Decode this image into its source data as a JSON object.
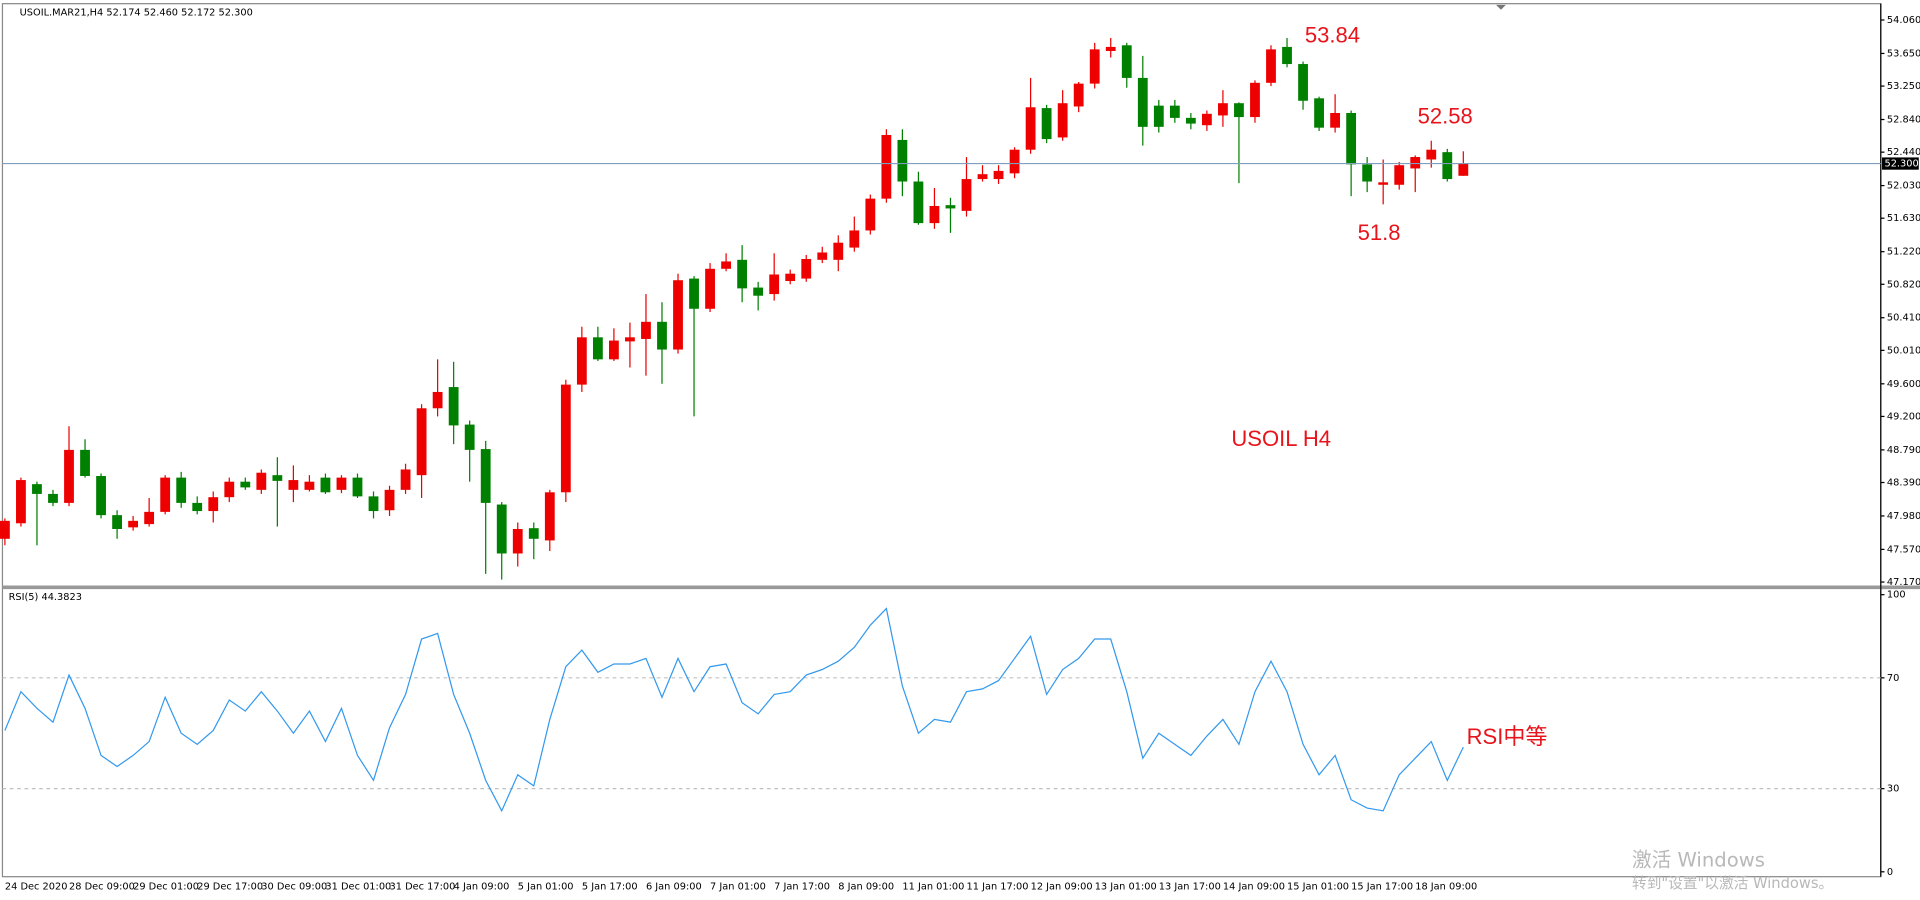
{
  "chart_data": [
    {
      "type": "candlestick",
      "title": "USOIL.MAR21,H4  52.174 52.460 52.172 52.300",
      "categories": [
        "24 Dec 2020",
        null,
        null,
        null,
        "28 Dec 09:00",
        null,
        null,
        null,
        "29 Dec 01:00",
        null,
        null,
        null,
        "29 Dec 17:00",
        null,
        null,
        null,
        "30 Dec 09:00",
        null,
        null,
        null,
        "31 Dec 01:00",
        null,
        null,
        null,
        "31 Dec 17:00",
        null,
        null,
        null,
        "4 Jan 09:00",
        null,
        null,
        null,
        "5 Jan 01:00",
        null,
        null,
        null,
        "5 Jan 17:00",
        null,
        null,
        null,
        "6 Jan 09:00",
        null,
        null,
        null,
        "7 Jan 01:00",
        null,
        null,
        null,
        "7 Jan 17:00",
        null,
        null,
        null,
        "8 Jan 09:00",
        null,
        null,
        null,
        "11 Jan 01:00",
        null,
        null,
        null,
        "11 Jan 17:00",
        null,
        null,
        null,
        "12 Jan 09:00",
        null,
        null,
        null,
        "13 Jan 01:00",
        null,
        null,
        null,
        "13 Jan 17:00",
        null,
        null,
        null,
        "14 Jan 09:00",
        null,
        null,
        null,
        "15 Jan 01:00",
        null,
        null,
        null,
        "15 Jan 17:00",
        null,
        null,
        null,
        "18 Jan 09:00",
        null,
        null,
        null
      ],
      "open": [
        47.7,
        47.89,
        48.37,
        48.25,
        48.14,
        48.79,
        48.47,
        47.99,
        47.84,
        47.88,
        48.03,
        48.45,
        48.14,
        48.04,
        48.21,
        48.4,
        48.3,
        48.48,
        48.3,
        48.3,
        48.45,
        48.3,
        48.45,
        48.22,
        48.05,
        48.3,
        48.48,
        49.3,
        49.56,
        49.1,
        48.8,
        48.12,
        47.52,
        47.83,
        47.68,
        48.27,
        49.59,
        50.17,
        49.9,
        50.12,
        50.15,
        50.36,
        50.02,
        50.89,
        50.52,
        51.01,
        51.12,
        50.78,
        50.7,
        50.86,
        50.89,
        51.12,
        51.12,
        51.27,
        51.48,
        51.87,
        52.59,
        52.08,
        51.57,
        51.79,
        51.72,
        52.11,
        52.11,
        52.18,
        52.47,
        52.98,
        52.62,
        53.0,
        53.28,
        53.68,
        53.75,
        53.35,
        53.01,
        53.01,
        52.86,
        52.77,
        52.89,
        53.04,
        52.87,
        53.29,
        53.73,
        53.52,
        53.1,
        52.74,
        52.92,
        52.29,
        52.04,
        52.04,
        52.24,
        52.35,
        52.44,
        52.15
      ],
      "high": [
        47.95,
        48.45,
        48.4,
        48.3,
        49.08,
        48.92,
        48.5,
        48.05,
        47.98,
        48.2,
        48.48,
        48.52,
        48.22,
        48.28,
        48.45,
        48.45,
        48.55,
        48.7,
        48.6,
        48.48,
        48.5,
        48.48,
        48.5,
        48.28,
        48.35,
        48.62,
        49.35,
        49.9,
        49.87,
        49.15,
        48.9,
        48.15,
        47.9,
        47.9,
        48.3,
        49.65,
        50.3,
        50.3,
        50.28,
        50.35,
        50.7,
        50.6,
        50.95,
        50.92,
        51.08,
        51.2,
        51.3,
        50.85,
        51.2,
        51.0,
        51.18,
        51.28,
        51.42,
        51.65,
        51.92,
        52.72,
        52.72,
        52.2,
        52.0,
        51.88,
        52.38,
        52.28,
        52.28,
        52.5,
        53.35,
        53.02,
        53.2,
        53.3,
        53.78,
        53.84,
        53.78,
        53.62,
        53.08,
        53.08,
        52.92,
        52.95,
        53.2,
        53.05,
        53.32,
        53.75,
        53.84,
        53.55,
        53.12,
        53.15,
        52.95,
        52.38,
        52.35,
        52.32,
        52.4,
        52.58,
        52.48,
        52.45
      ],
      "low": [
        47.62,
        47.85,
        47.62,
        48.1,
        48.1,
        48.45,
        47.95,
        47.7,
        47.8,
        47.85,
        48.0,
        48.08,
        48.0,
        47.9,
        48.15,
        48.3,
        48.25,
        47.85,
        48.15,
        48.28,
        48.25,
        48.26,
        48.2,
        47.95,
        47.98,
        48.25,
        48.2,
        49.2,
        48.86,
        48.4,
        47.27,
        47.2,
        47.36,
        47.45,
        47.55,
        48.15,
        49.5,
        49.88,
        49.88,
        49.8,
        49.7,
        49.6,
        49.97,
        49.2,
        50.48,
        50.98,
        50.6,
        50.5,
        50.62,
        50.82,
        50.85,
        51.08,
        50.98,
        51.22,
        51.43,
        51.82,
        51.9,
        51.55,
        51.5,
        51.45,
        51.65,
        52.08,
        52.05,
        52.12,
        52.42,
        52.55,
        52.58,
        52.93,
        53.22,
        53.6,
        53.23,
        52.52,
        52.68,
        52.8,
        52.72,
        52.7,
        52.75,
        52.06,
        52.8,
        53.25,
        53.48,
        52.96,
        52.7,
        52.68,
        51.9,
        51.95,
        51.8,
        51.98,
        51.95,
        52.25,
        52.08,
        52.15
      ],
      "close": [
        47.92,
        48.42,
        48.25,
        48.14,
        48.79,
        48.47,
        47.99,
        47.82,
        47.92,
        48.03,
        48.45,
        48.14,
        48.04,
        48.21,
        48.4,
        48.33,
        48.51,
        48.41,
        48.42,
        48.4,
        48.27,
        48.45,
        48.22,
        48.04,
        48.3,
        48.55,
        49.3,
        49.5,
        49.09,
        48.79,
        48.14,
        47.52,
        47.82,
        47.7,
        48.27,
        49.59,
        50.17,
        49.9,
        50.13,
        50.17,
        50.36,
        50.02,
        50.87,
        50.52,
        51.01,
        51.1,
        50.77,
        50.68,
        50.94,
        50.95,
        51.13,
        51.21,
        51.33,
        51.48,
        51.87,
        52.65,
        52.08,
        51.57,
        51.78,
        51.75,
        52.11,
        52.17,
        52.21,
        52.47,
        52.99,
        52.6,
        53.04,
        53.28,
        53.7,
        53.73,
        53.35,
        52.75,
        52.75,
        52.86,
        52.79,
        52.91,
        53.04,
        52.87,
        53.29,
        53.7,
        53.52,
        53.07,
        52.74,
        52.92,
        52.29,
        52.08,
        52.07,
        52.28,
        52.38,
        52.47,
        52.11,
        52.3
      ],
      "up_color": "#ee0000",
      "down_color": "#008000",
      "ylim": [
        47.12,
        54.23
      ],
      "yticks": [
        {
          "value": 54.06,
          "label": "54.060"
        },
        {
          "value": 53.65,
          "label": "53.650"
        },
        {
          "value": 53.25,
          "label": "53.250"
        },
        {
          "value": 52.84,
          "label": "52.840"
        },
        {
          "value": 52.44,
          "label": "52.440"
        },
        {
          "value": 52.03,
          "label": "52.030"
        },
        {
          "value": 51.63,
          "label": "51.630"
        },
        {
          "value": 51.22,
          "label": "51.220"
        },
        {
          "value": 50.82,
          "label": "50.820"
        },
        {
          "value": 50.41,
          "label": "50.410"
        },
        {
          "value": 50.01,
          "label": "50.010"
        },
        {
          "value": 49.6,
          "label": "49.600"
        },
        {
          "value": 49.2,
          "label": "49.200"
        },
        {
          "value": 48.79,
          "label": "48.790"
        },
        {
          "value": 48.39,
          "label": "48.390"
        },
        {
          "value": 47.98,
          "label": "47.980"
        },
        {
          "value": 47.57,
          "label": "47.570"
        },
        {
          "value": 47.17,
          "label": "47.170"
        }
      ],
      "current_price": {
        "value": 52.3,
        "label": "52.300"
      },
      "annotations": [
        "53.84",
        "52.58",
        "51.8",
        "USOIL H4"
      ]
    },
    {
      "type": "line",
      "title": "RSI(5) 44.3823",
      "color": "#3399ee",
      "values": [
        51,
        65,
        59,
        54,
        71,
        59,
        42,
        38,
        42,
        47,
        63,
        50,
        46,
        51,
        62,
        58,
        65,
        58,
        50,
        58,
        47,
        59,
        42,
        33,
        52,
        64,
        84,
        86,
        64,
        50,
        33,
        22,
        35,
        31,
        55,
        74,
        80,
        72,
        75,
        75,
        77,
        63,
        77,
        65,
        74,
        75,
        61,
        57,
        64,
        65,
        71,
        73,
        76,
        81,
        89,
        95,
        67,
        50,
        55,
        54,
        65,
        66,
        69,
        77,
        85,
        64,
        73,
        77,
        84,
        84,
        65,
        41,
        50,
        46,
        42,
        49,
        55,
        46,
        65,
        76,
        65,
        46,
        35,
        42,
        26,
        23,
        22,
        35,
        41,
        47,
        33,
        45
      ],
      "ylim": [
        0,
        100
      ],
      "yticks": [
        100,
        70,
        30,
        0
      ],
      "levels": [
        70,
        30
      ],
      "annotations": [
        "RSI中等"
      ]
    }
  ],
  "watermark": {
    "line1": "激活 Windows",
    "line2": "转到\"设置\"以激活 Windows。"
  }
}
